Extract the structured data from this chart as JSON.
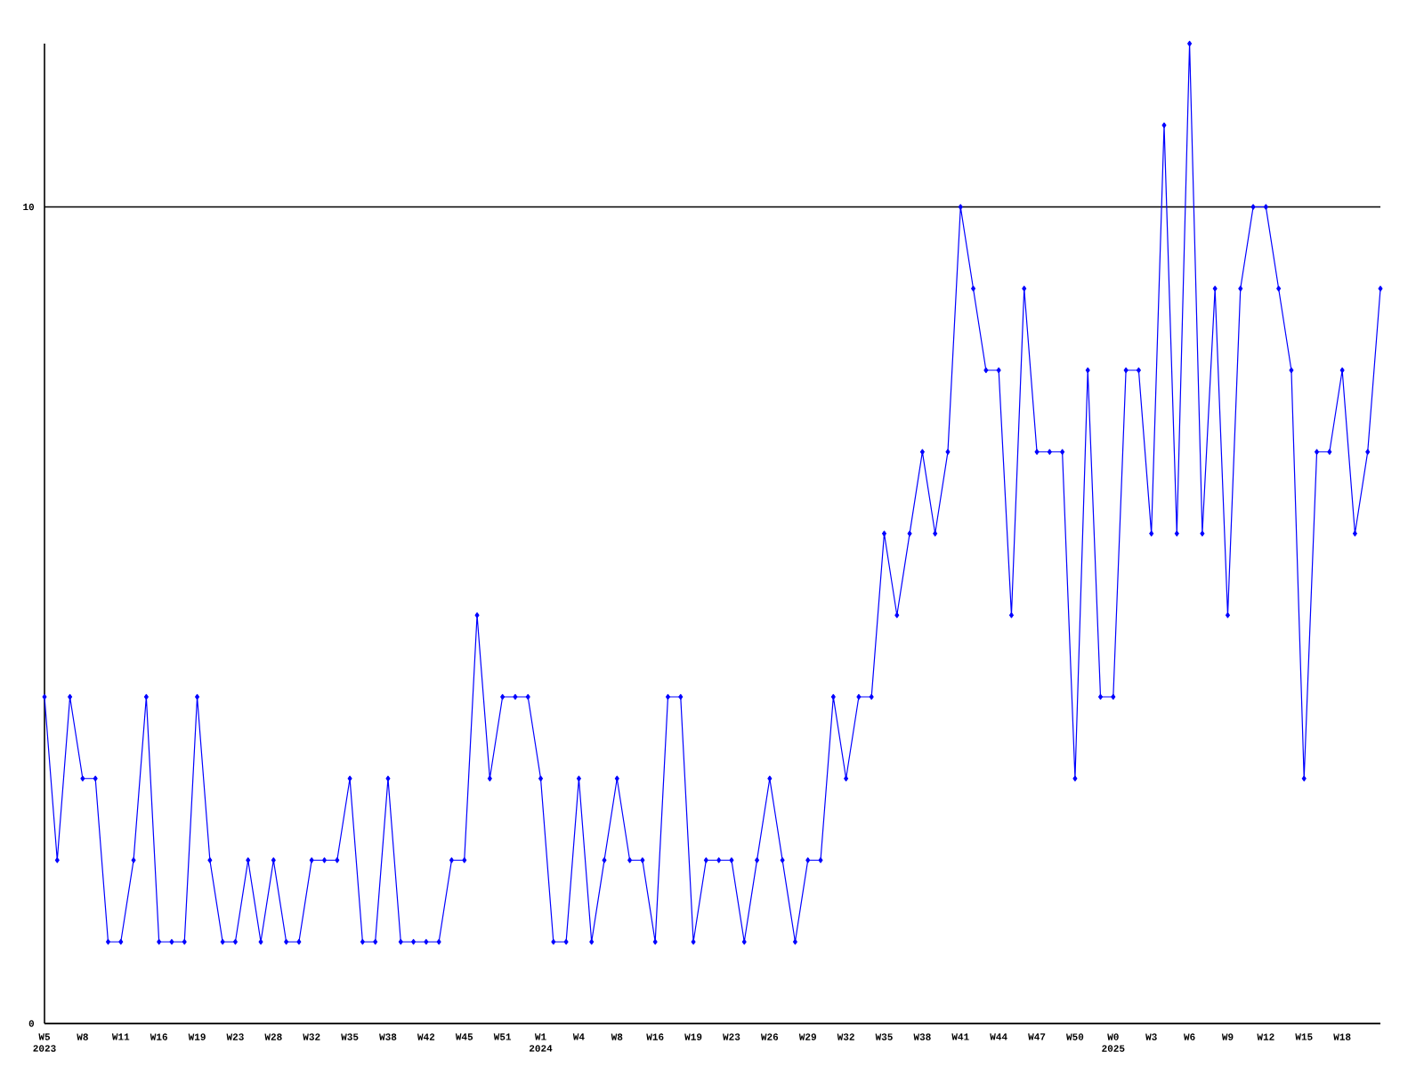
{
  "chart_data": {
    "type": "line",
    "categories": [
      "W5 2023",
      null,
      null,
      "W8",
      null,
      null,
      "W11",
      null,
      null,
      "W16",
      null,
      null,
      "W19",
      null,
      null,
      "W23",
      null,
      null,
      "W28",
      null,
      null,
      "W32",
      null,
      null,
      "W35",
      null,
      null,
      "W38",
      null,
      null,
      "W42",
      null,
      null,
      "W45",
      null,
      null,
      "W51",
      null,
      null,
      "W1 2024",
      null,
      null,
      "W4",
      null,
      null,
      "W8",
      null,
      null,
      "W16",
      null,
      null,
      "W19",
      null,
      null,
      "W23",
      null,
      null,
      "W26",
      null,
      null,
      "W29",
      null,
      null,
      "W32",
      null,
      null,
      "W35",
      null,
      null,
      "W38",
      null,
      null,
      "W41",
      null,
      null,
      "W44",
      null,
      null,
      "W47",
      null,
      null,
      "W50",
      null,
      null,
      "W0 2025",
      null,
      null,
      "W3",
      null,
      null,
      "W6",
      null,
      null,
      "W9",
      null,
      null,
      "W12",
      null,
      null,
      "W15",
      null,
      null,
      "W18",
      null,
      null,
      null
    ],
    "values": [
      4,
      2,
      4,
      3,
      3,
      1,
      1,
      2,
      4,
      1,
      1,
      1,
      4,
      2,
      1,
      1,
      2,
      1,
      2,
      1,
      1,
      2,
      2,
      2,
      3,
      1,
      1,
      3,
      1,
      1,
      1,
      1,
      2,
      2,
      5,
      3,
      4,
      4,
      4,
      3,
      1,
      1,
      3,
      1,
      2,
      3,
      2,
      2,
      1,
      4,
      4,
      1,
      2,
      2,
      2,
      1,
      2,
      3,
      2,
      1,
      2,
      2,
      4,
      3,
      4,
      4,
      6,
      5,
      6,
      7,
      6,
      7,
      10,
      9,
      8,
      8,
      5,
      9,
      7,
      7,
      7,
      3,
      8,
      4,
      4,
      8,
      8,
      6,
      11,
      6,
      12,
      6,
      9,
      5,
      9,
      10,
      10,
      9,
      8,
      3,
      7,
      7,
      8,
      6,
      7,
      9
    ],
    "color": "#0000ff",
    "marker": "diamond",
    "ylim": [
      0,
      12
    ],
    "yticks": [
      0,
      10
    ],
    "grid": "y"
  }
}
